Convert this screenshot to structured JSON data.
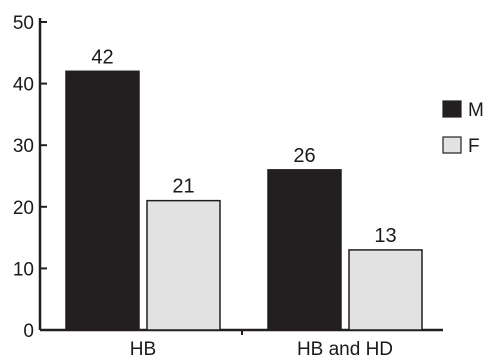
{
  "chart_data": {
    "type": "bar",
    "title": "",
    "xlabel": "",
    "ylabel": "",
    "categories": [
      "HB",
      "HB and HD"
    ],
    "series": [
      {
        "name": "M",
        "values": [
          42,
          26
        ],
        "color": "#231f20"
      },
      {
        "name": "F",
        "values": [
          21,
          13
        ],
        "color": "#e2e2e2"
      }
    ],
    "ylim": [
      0,
      50
    ],
    "yticks": [
      0,
      10,
      20,
      30,
      40,
      50
    ],
    "grid": false,
    "legend_placement": "right"
  }
}
